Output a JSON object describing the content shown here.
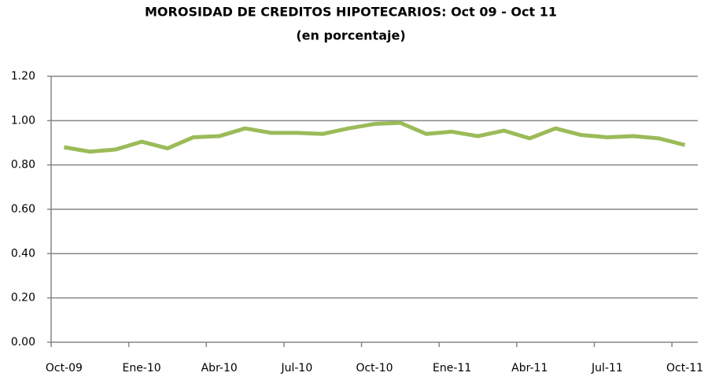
{
  "chart_data": {
    "type": "line",
    "title": "MOROSIDAD DE CREDITOS HIPOTECARIOS: Oct 09 - Oct 11",
    "subtitle": "(en porcentaje)",
    "categories": [
      "Oct-09",
      null,
      null,
      "Ene-10",
      null,
      null,
      "Abr-10",
      null,
      null,
      "Jul-10",
      null,
      null,
      "Oct-10",
      null,
      null,
      "Ene-11",
      null,
      null,
      "Abr-11",
      null,
      null,
      "Jul-11",
      null,
      null,
      "Oct-11"
    ],
    "series": [
      {
        "color": "#9bbb59",
        "values": [
          0.88,
          0.86,
          0.87,
          0.905,
          0.875,
          0.925,
          0.93,
          0.965,
          0.945,
          0.945,
          0.94,
          0.965,
          0.985,
          0.99,
          0.94,
          0.95,
          0.93,
          0.955,
          0.92,
          0.965,
          0.935,
          0.925,
          0.93,
          0.92,
          0.89
        ]
      }
    ],
    "ylim": [
      0,
      1.2
    ],
    "yticks": [
      {
        "value": 0,
        "label": "0.00"
      },
      {
        "value": 0.2,
        "label": "0.20"
      },
      {
        "value": 0.4,
        "label": "0.40"
      },
      {
        "value": 0.6,
        "label": "0.60"
      },
      {
        "value": 0.8,
        "label": "0.80"
      },
      {
        "value": 1,
        "label": "1.00"
      },
      {
        "value": 1.2,
        "label": "1.20"
      }
    ],
    "grid": true
  }
}
